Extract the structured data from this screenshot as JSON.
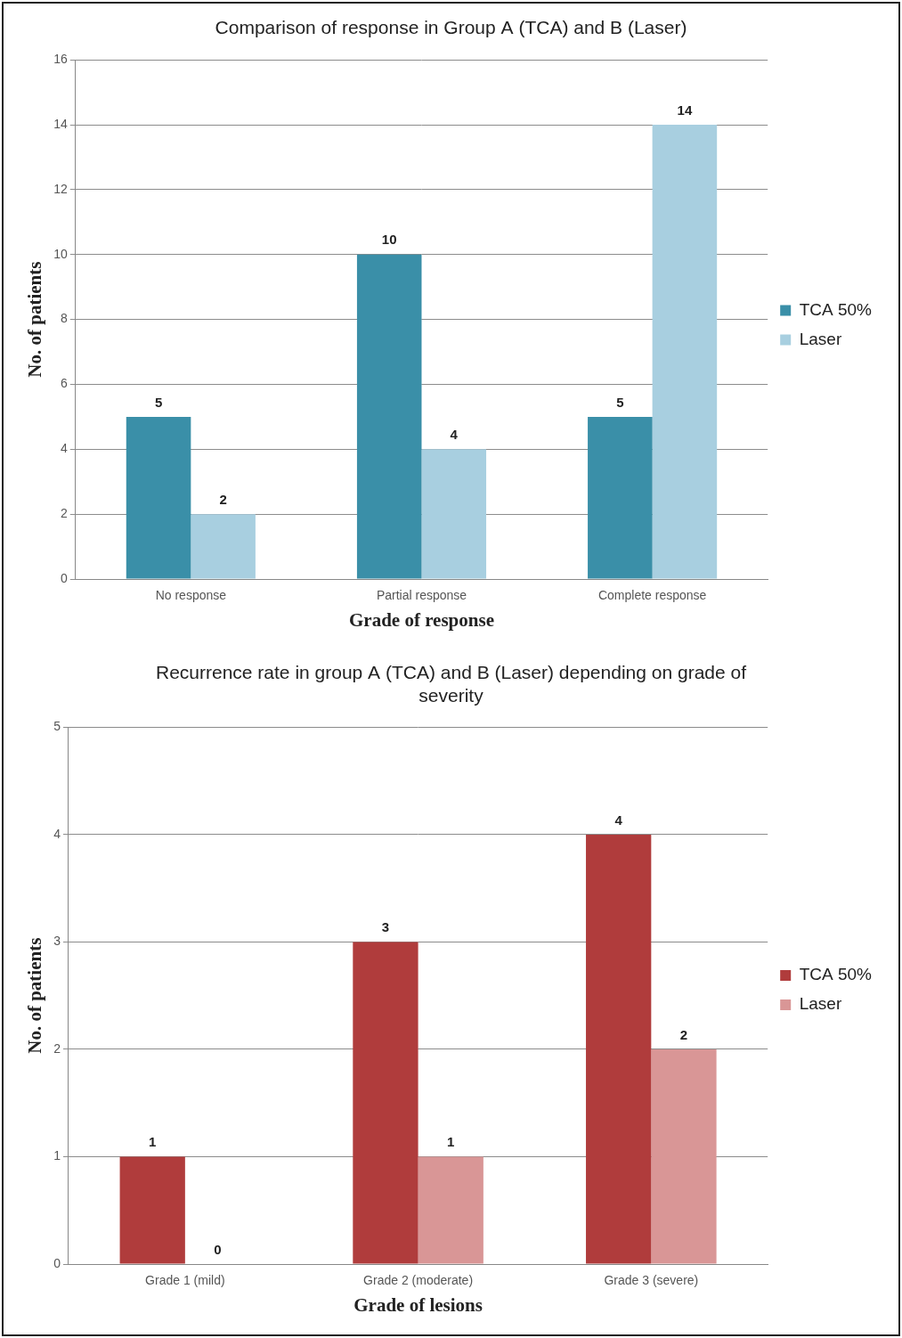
{
  "chart_data": [
    {
      "type": "bar",
      "title": "Comparison of response in Group A (TCA) and B (Laser)",
      "x_label": "Grade of response",
      "y_label": "No. of patients",
      "categories": [
        "No response",
        "Partial response",
        "Complete response"
      ],
      "series": [
        {
          "name": "TCA 50%",
          "color": "#3a8fa8",
          "values": [
            5,
            10,
            5
          ]
        },
        {
          "name": "Laser",
          "color": "#a8cfe0",
          "values": [
            2,
            4,
            14
          ]
        }
      ],
      "ylim": [
        0,
        16
      ],
      "yticks": [
        0,
        2,
        4,
        6,
        8,
        10,
        12,
        14,
        16
      ],
      "grid": true,
      "legend": "right",
      "data_labels": true
    },
    {
      "type": "bar",
      "title": "Recurrence rate in group A (TCA) and B (Laser) depending on grade of severity",
      "x_label": "Grade of lesions",
      "y_label": "No. of patients",
      "categories": [
        "Grade 1 (mild)",
        "Grade 2 (moderate)",
        "Grade 3 (severe)"
      ],
      "series": [
        {
          "name": "TCA 50%",
          "color": "#b03c3c",
          "values": [
            1,
            3,
            4
          ]
        },
        {
          "name": "Laser",
          "color": "#d99696",
          "values": [
            0,
            1,
            2
          ]
        }
      ],
      "ylim": [
        0,
        5
      ],
      "yticks": [
        0,
        1,
        2,
        3,
        4,
        5
      ],
      "grid": true,
      "legend": "right",
      "data_labels": true
    }
  ]
}
